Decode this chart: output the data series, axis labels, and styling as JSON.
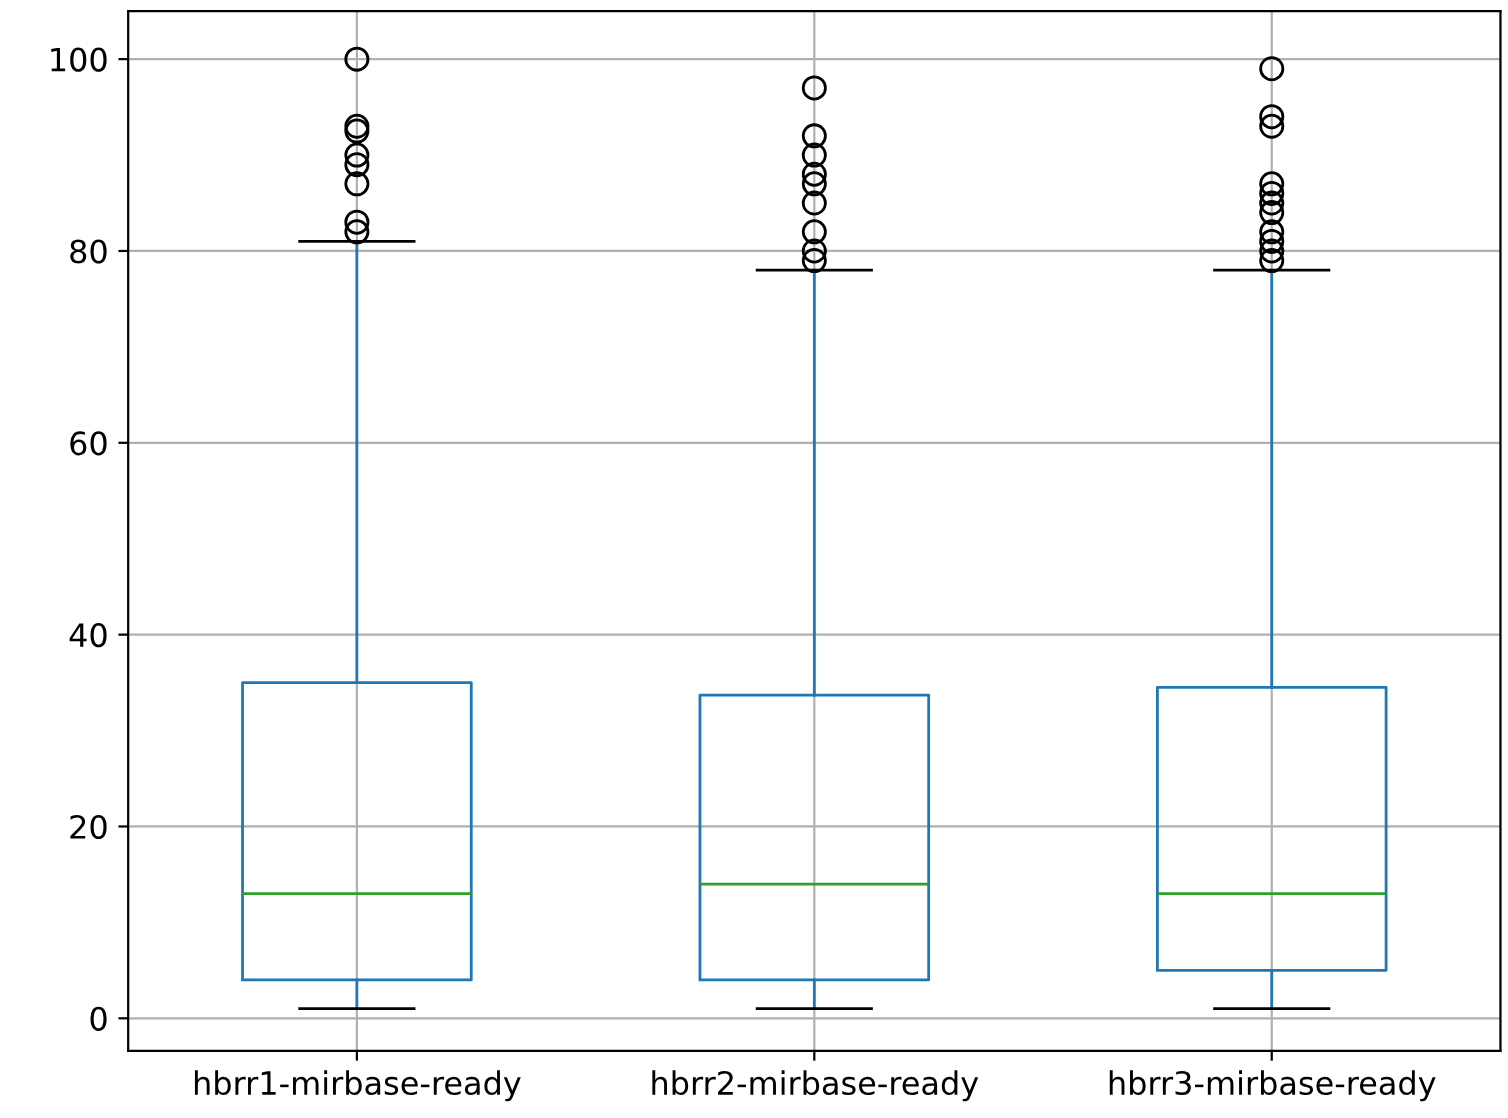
{
  "chart_data": {
    "type": "box",
    "categories": [
      "hbrr1-mirbase-ready",
      "hbrr2-mirbase-ready",
      "hbrr3-mirbase-ready"
    ],
    "boxes": [
      {
        "low": 1,
        "q1": 4,
        "median": 13,
        "q3": 35,
        "high": 81,
        "outliers": [
          100,
          93,
          92.5,
          90,
          89,
          87,
          83,
          82
        ]
      },
      {
        "low": 1,
        "q1": 4,
        "median": 14,
        "q3": 33.7,
        "high": 78,
        "outliers": [
          97,
          92,
          90,
          88,
          87,
          85,
          82,
          80,
          79
        ]
      },
      {
        "low": 1,
        "q1": 5,
        "median": 13,
        "q3": 34.5,
        "high": 78,
        "outliers": [
          99,
          94,
          93,
          87,
          86,
          85,
          84,
          82,
          81,
          80,
          79
        ]
      }
    ],
    "color": "#1f77b4",
    "ylim": [
      -3.4,
      105
    ],
    "yticks": [
      0,
      20,
      40,
      60,
      80,
      100
    ],
    "grid": true
  }
}
